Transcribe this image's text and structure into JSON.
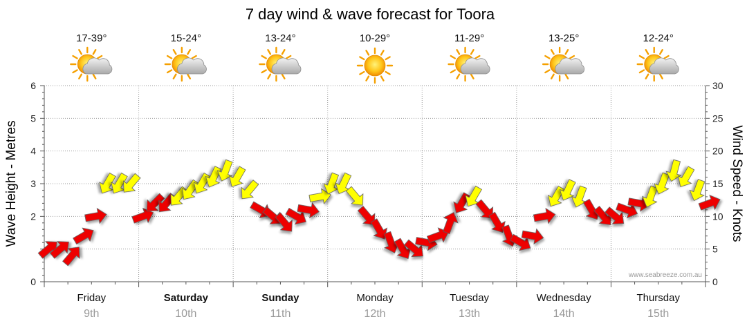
{
  "chart_data": {
    "type": "line",
    "title": "7 day wind & wave forecast for Toora",
    "ylabel_left": "Wave Height - Metres",
    "ylabel_right": "Wind Speed - Knots",
    "ylim_left": [
      0,
      6
    ],
    "ylim_right": [
      0,
      30
    ],
    "yticks_left": [
      "0",
      "2",
      "3",
      "4",
      "5",
      "6"
    ],
    "yticks_right": [
      "0",
      "5",
      "10",
      "15",
      "20",
      "25",
      "30"
    ],
    "grid": true,
    "days": [
      {
        "day": "Friday",
        "date": "9th",
        "temp": "17-39°",
        "icon": "sun-cloud-icon",
        "bold": false
      },
      {
        "day": "Saturday",
        "date": "10th",
        "temp": "15-24°",
        "icon": "sun-cloud-icon",
        "bold": true
      },
      {
        "day": "Sunday",
        "date": "11th",
        "temp": "13-24°",
        "icon": "sun-cloud-icon",
        "bold": true
      },
      {
        "day": "Monday",
        "date": "12th",
        "temp": "10-29°",
        "icon": "sun-icon",
        "bold": false
      },
      {
        "day": "Tuesday",
        "date": "13th",
        "temp": "11-29°",
        "icon": "sun-cloud-icon",
        "bold": false
      },
      {
        "day": "Wednesday",
        "date": "14th",
        "temp": "13-25°",
        "icon": "sun-cloud-icon",
        "bold": false
      },
      {
        "day": "Thursday",
        "date": "15th",
        "temp": "12-24°",
        "icon": "sun-cloud-icon",
        "bold": false
      }
    ],
    "wind_series": {
      "x_hours": [
        0,
        3,
        6,
        9,
        12,
        15,
        18,
        21,
        24,
        27,
        30,
        33,
        36,
        39,
        42,
        45,
        48,
        51,
        54,
        57,
        60,
        63,
        66,
        69,
        72,
        75,
        78,
        81,
        84,
        87,
        90,
        93,
        96,
        99,
        102,
        105,
        108,
        111,
        114,
        117,
        120,
        123,
        126,
        129,
        132,
        135,
        138,
        141,
        144,
        147,
        150,
        153,
        156,
        159,
        162,
        165,
        168
      ],
      "speed_knots": [
        5,
        5,
        4,
        7,
        10,
        15,
        15,
        15,
        10,
        12,
        12,
        13,
        14,
        15,
        16,
        17,
        16,
        14,
        11,
        10,
        9,
        10,
        11,
        13,
        15,
        15,
        13,
        10,
        8,
        6,
        5,
        5,
        6,
        7,
        9,
        12,
        13,
        11,
        9,
        7,
        6,
        7,
        10,
        13,
        14,
        13,
        11,
        10,
        10,
        11,
        12,
        13,
        15,
        17,
        16,
        14,
        12
      ],
      "direction_deg": [
        230,
        230,
        220,
        240,
        260,
        30,
        30,
        40,
        250,
        45,
        40,
        40,
        35,
        30,
        25,
        20,
        30,
        40,
        300,
        310,
        320,
        300,
        280,
        260,
        20,
        25,
        320,
        320,
        330,
        340,
        330,
        310,
        280,
        250,
        200,
        30,
        30,
        320,
        330,
        340,
        300,
        280,
        260,
        30,
        25,
        20,
        330,
        320,
        310,
        290,
        280,
        20,
        20,
        15,
        30,
        20,
        250
      ],
      "colors": {
        "strong": "#ee0000",
        "moderate": "#ffff00"
      }
    },
    "credit": "www.seabreeze.com.au"
  }
}
